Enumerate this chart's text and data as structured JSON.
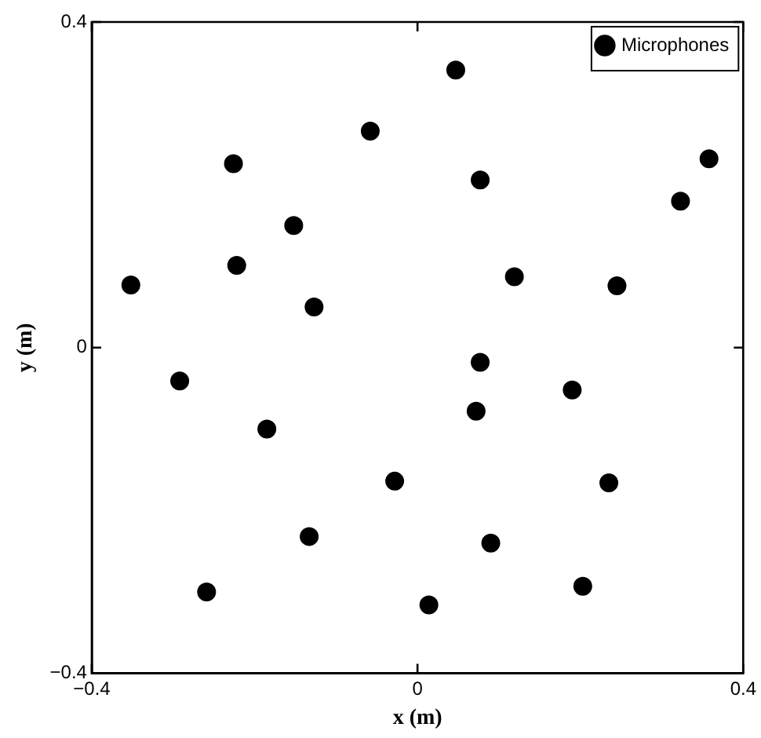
{
  "chart_data": {
    "type": "scatter",
    "xlabel": "x (m)",
    "ylabel": "y (m)",
    "xlim": [
      -0.4,
      0.4
    ],
    "ylim": [
      -0.4,
      0.4
    ],
    "xticks": [
      -0.4,
      0,
      0.4
    ],
    "yticks": [
      -0.4,
      0,
      0.4
    ],
    "grid": false,
    "legend": "top right",
    "marker": "circle",
    "series": [
      {
        "name": "Microphones",
        "color": "#000000",
        "x": [
          0.047,
          -0.058,
          -0.226,
          0.077,
          0.358,
          0.323,
          -0.152,
          -0.352,
          -0.222,
          -0.127,
          0.119,
          0.245,
          0.077,
          -0.292,
          0.19,
          0.072,
          -0.185,
          -0.028,
          0.235,
          -0.133,
          0.09,
          -0.259,
          0.014,
          0.203
        ],
        "values": [
          0.341,
          0.266,
          0.226,
          0.206,
          0.232,
          0.18,
          0.15,
          0.077,
          0.101,
          0.05,
          0.087,
          0.076,
          -0.018,
          -0.041,
          -0.052,
          -0.078,
          -0.1,
          -0.164,
          -0.166,
          -0.232,
          -0.24,
          -0.3,
          -0.316,
          -0.293
        ]
      }
    ]
  }
}
